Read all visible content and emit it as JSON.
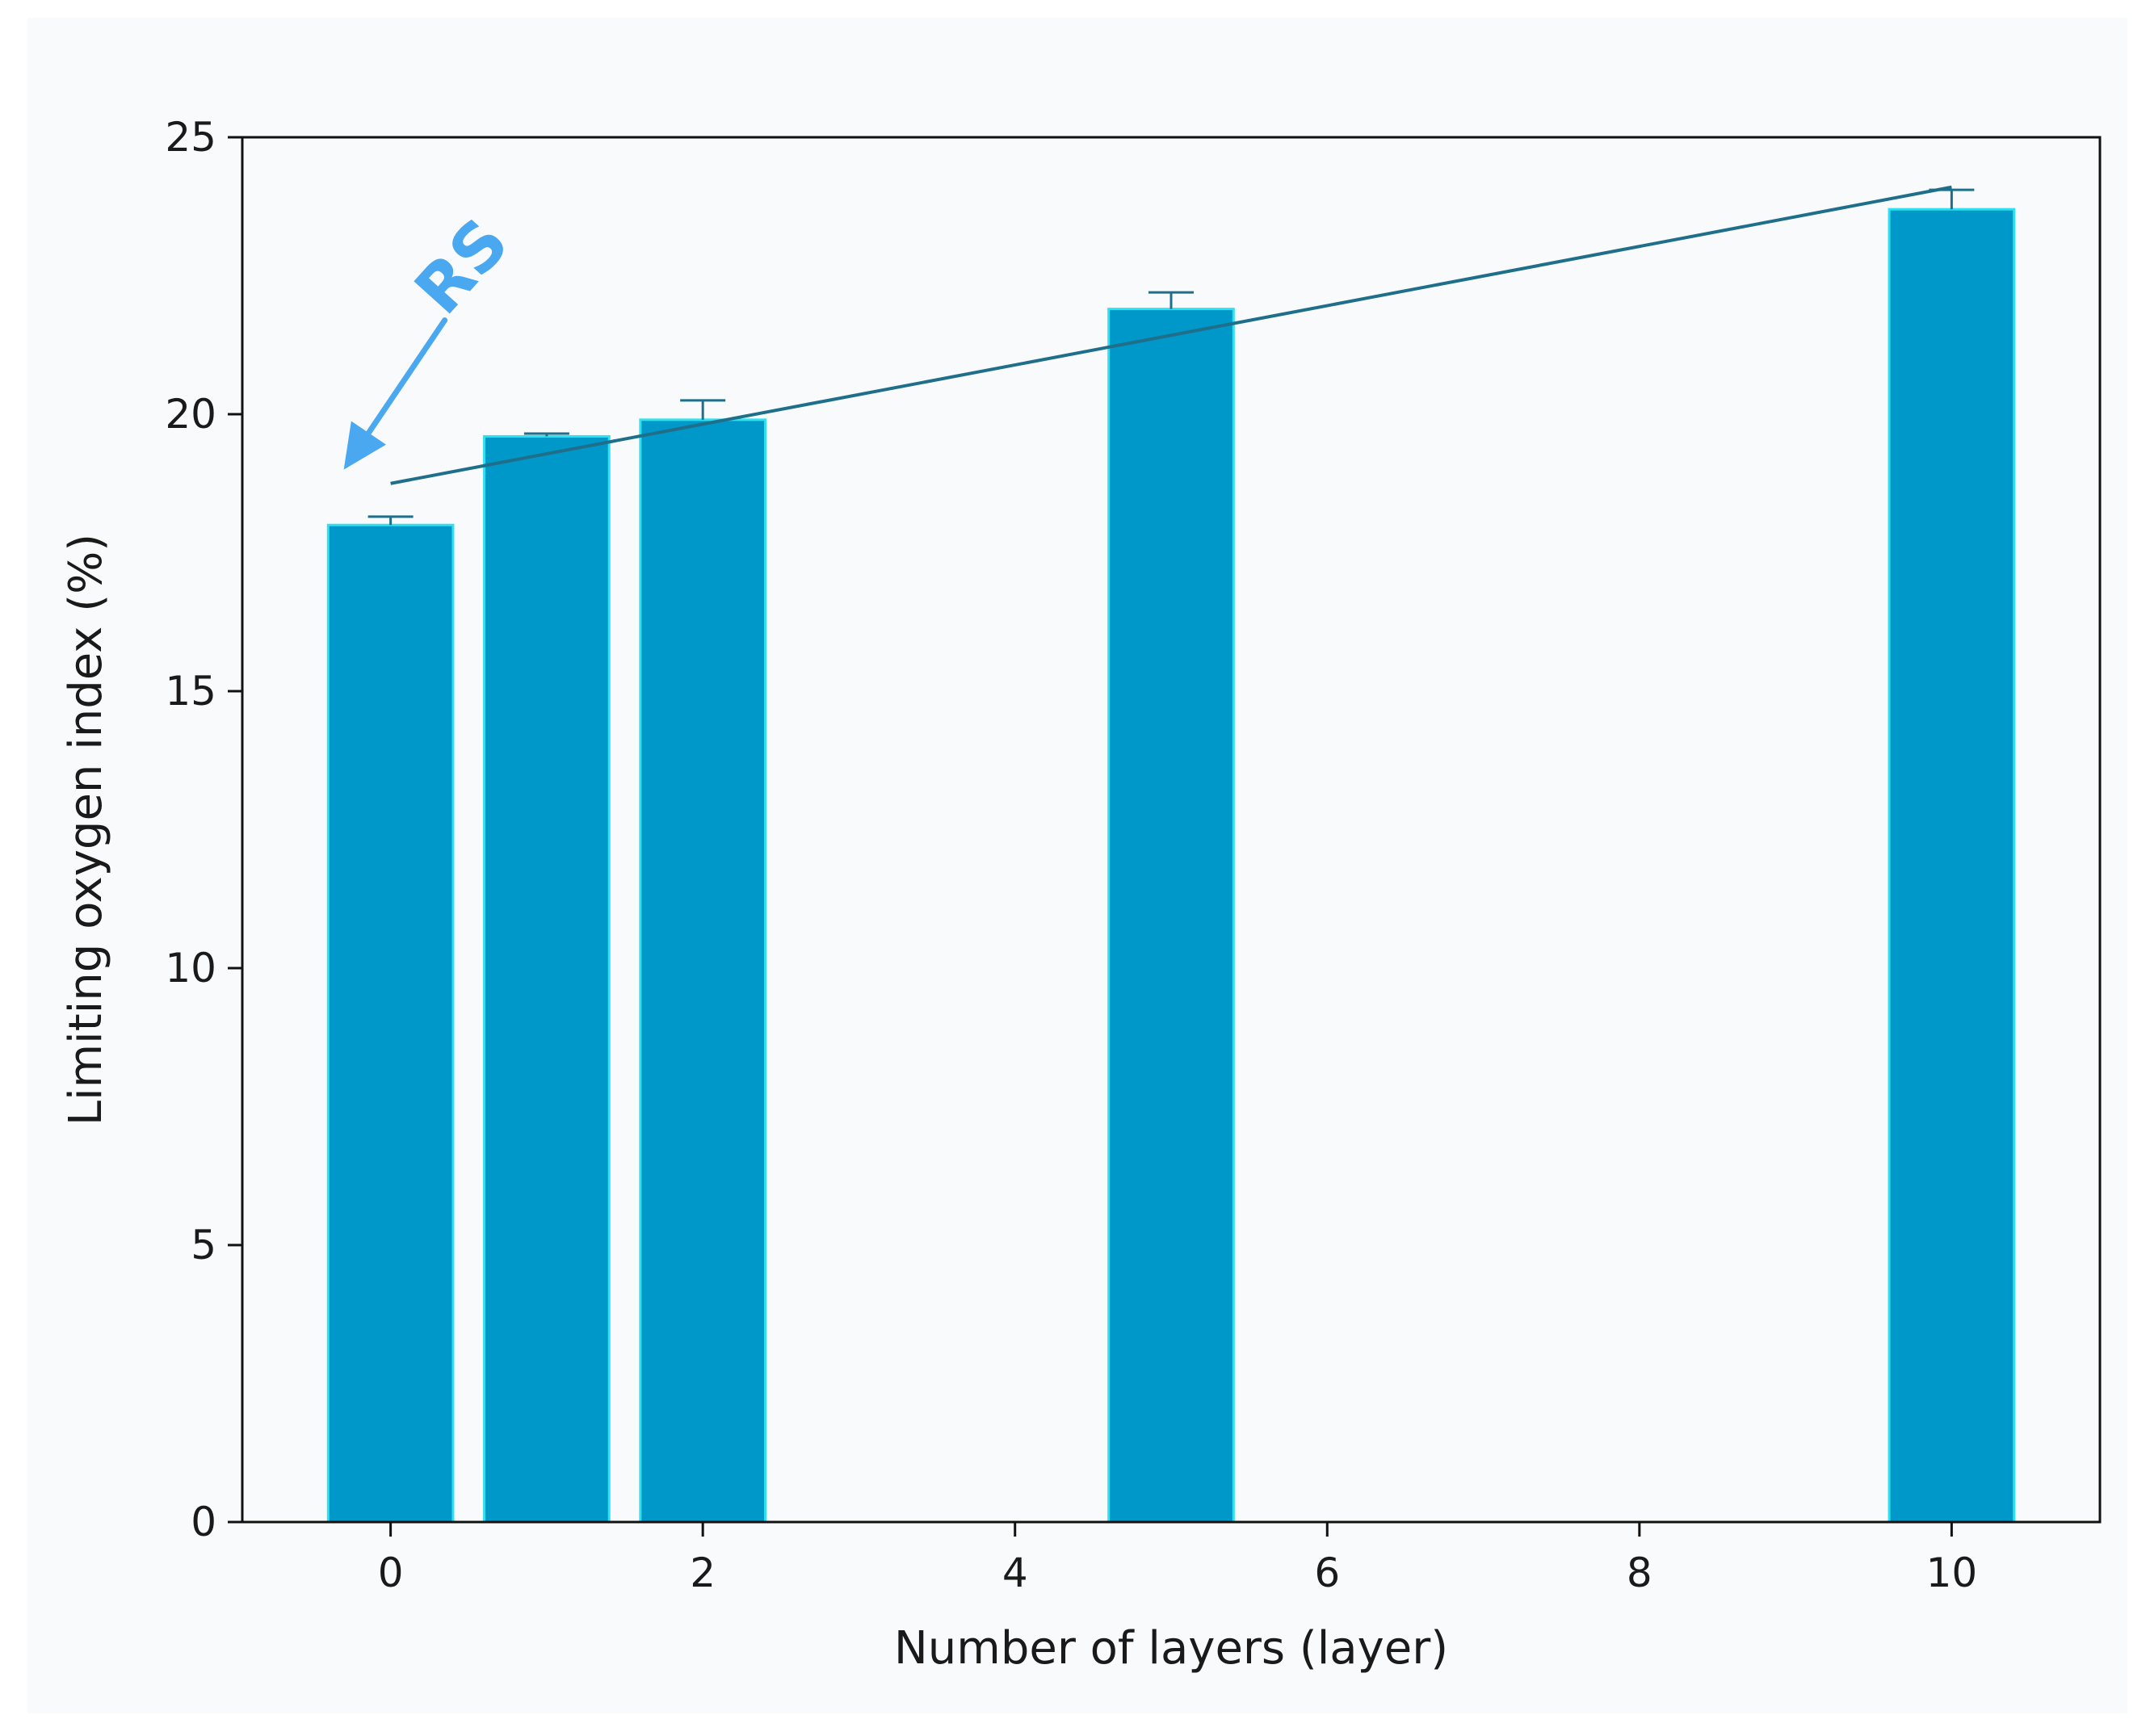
{
  "chart_data": {
    "type": "bar",
    "title": "",
    "xlabel": "Number of layers (layer)",
    "ylabel": "Limiting oxygen index (%)",
    "xlim": [
      -0.95,
      10.95
    ],
    "ylim": [
      0,
      25
    ],
    "xticks": [
      "0",
      "2",
      "4",
      "6",
      "8",
      "10"
    ],
    "yticks": [
      "0",
      "5",
      "10",
      "15",
      "20",
      "25"
    ],
    "bar_color": "#0098c8",
    "bar_edge_color": "#2ee0f0",
    "bars": [
      {
        "x": 0,
        "value": 18.0,
        "error": 0.15
      },
      {
        "x": 1,
        "value": 19.6,
        "error": 0.05
      },
      {
        "x": 2,
        "value": 19.9,
        "error": 0.35
      },
      {
        "x": 5,
        "value": 21.9,
        "error": 0.3
      },
      {
        "x": 10,
        "value": 23.7,
        "error": 0.35
      }
    ],
    "trendline": {
      "x": [
        0,
        10
      ],
      "y": [
        18.75,
        24.1
      ],
      "color": "#1f6f8b"
    },
    "annotation": {
      "text": "RS",
      "target_x": -0.3,
      "target_y": 19.0,
      "color": "#4aa8f0"
    },
    "grid": false
  }
}
